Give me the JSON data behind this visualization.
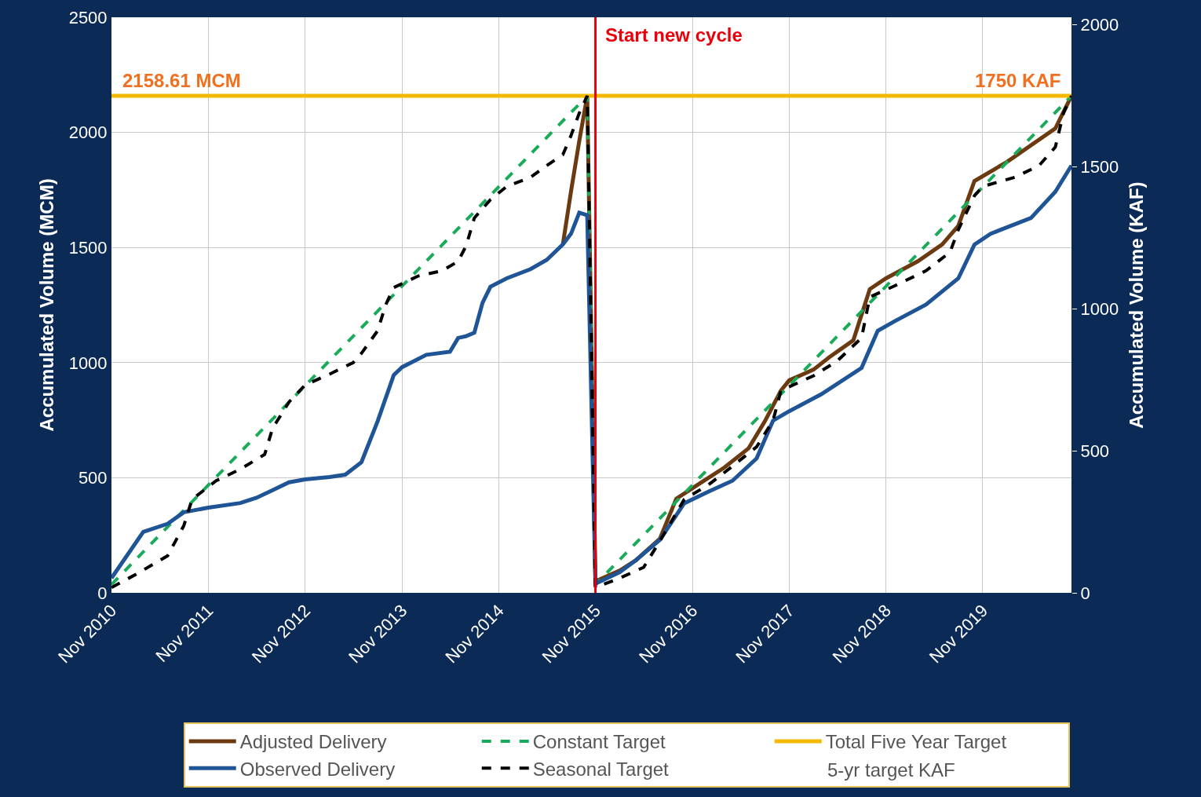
{
  "chart_data": {
    "type": "line",
    "ylabel": "Accumulated Volume (MCM)",
    "y2label": "Accumulated Volume (KAF)",
    "xlim": [
      "2010-11",
      "2020-10"
    ],
    "xticks": [
      {
        "value": "2010-11",
        "label": "Nov 2010"
      },
      {
        "value": "2011-11",
        "label": "Nov 2011"
      },
      {
        "value": "2012-11",
        "label": "Nov 2012"
      },
      {
        "value": "2013-11",
        "label": "Nov 2013"
      },
      {
        "value": "2014-11",
        "label": "Nov 2014"
      },
      {
        "value": "2015-11",
        "label": "Nov 2015"
      },
      {
        "value": "2016-11",
        "label": "Nov 2016"
      },
      {
        "value": "2017-11",
        "label": "Nov 2017"
      },
      {
        "value": "2018-11",
        "label": "Nov 2018"
      },
      {
        "value": "2019-11",
        "label": "Nov 2019"
      }
    ],
    "ylim": [
      0,
      2500
    ],
    "yticks": [
      0,
      500,
      1000,
      1500,
      2000,
      2500
    ],
    "y2lim": [
      0,
      2026.8
    ],
    "y2ticks": [
      0,
      500,
      1000,
      1500,
      2000
    ],
    "grid": true,
    "legend": "bottom",
    "series": [
      {
        "name": "Adjusted Delivery",
        "color": "#6b3a10",
        "line_style": "solid",
        "x": [
          "2015-07",
          "2015-08",
          "2015-09",
          "2015-10",
          "2015-11",
          "2016-02",
          "2016-04",
          "2016-07",
          "2016-09",
          "2016-12",
          "2017-03",
          "2017-06",
          "2017-08",
          "2017-10",
          "2017-11",
          "2018-02",
          "2018-04",
          "2018-07",
          "2018-09",
          "2018-11",
          "2019-03",
          "2019-06",
          "2019-08",
          "2019-10",
          "2020-02",
          "2020-08",
          "2020-10"
        ],
        "values": [
          1513,
          1745,
          1963,
          2158.61,
          50,
          97,
          141,
          235,
          409,
          477,
          544,
          628,
          745,
          879,
          923,
          970,
          1023,
          1097,
          1319,
          1366,
          1440,
          1513,
          1594,
          1789,
          1872,
          2017,
          2158.61
        ]
      },
      {
        "name": "Constant Target",
        "color": "#1aab5a",
        "line_style": "dashed",
        "x": [
          "2010-11",
          "2015-10",
          "2015-11",
          "2020-10"
        ],
        "values": [
          36,
          2158.61,
          36,
          2158.61
        ]
      },
      {
        "name": "Total Five Year Target",
        "color": "#f5b800",
        "line_style": "solid",
        "x": [
          "2010-11",
          "2020-10"
        ],
        "values": [
          2158.61,
          2158.61
        ]
      },
      {
        "name": "Observed Delivery",
        "color": "#1f5596",
        "line_style": "solid",
        "x": [
          "2010-11",
          "2011-03",
          "2011-06",
          "2011-08",
          "2011-11",
          "2012-03",
          "2012-05",
          "2012-07",
          "2012-09",
          "2012-11",
          "2013-02",
          "2013-04",
          "2013-06",
          "2013-08",
          "2013-10",
          "2013-11",
          "2014-02",
          "2014-05",
          "2014-06",
          "2014-07",
          "2014-08",
          "2014-09",
          "2014-10",
          "2014-12",
          "2015-03",
          "2015-05",
          "2015-07",
          "2015-08",
          "2015-09",
          "2015-10",
          "2015-11",
          "2016-02",
          "2016-04",
          "2016-07",
          "2016-10",
          "2017-01",
          "2017-04",
          "2017-07",
          "2017-09",
          "2017-11",
          "2018-03",
          "2018-08",
          "2018-10",
          "2018-12",
          "2019-04",
          "2019-08",
          "2019-10",
          "2019-12",
          "2020-05",
          "2020-08",
          "2020-10"
        ],
        "values": [
          64,
          265,
          300,
          350,
          370,
          390,
          413,
          446,
          480,
          493,
          503,
          513,
          567,
          745,
          946,
          980,
          1034,
          1047,
          1107,
          1115,
          1130,
          1260,
          1330,
          1366,
          1406,
          1446,
          1513,
          1560,
          1651,
          1640,
          40,
          90,
          141,
          230,
          389,
          440,
          487,
          584,
          748,
          789,
          862,
          977,
          1138,
          1178,
          1252,
          1366,
          1513,
          1560,
          1628,
          1742,
          1856
        ]
      },
      {
        "name": "Seasonal Target",
        "color": "#000000",
        "line_style": "dashed",
        "x": [
          "2010-11",
          "2011-02",
          "2011-06",
          "2011-08",
          "2011-09",
          "2011-12",
          "2012-03",
          "2012-06",
          "2012-07",
          "2012-09",
          "2012-11",
          "2013-02",
          "2013-05",
          "2013-06",
          "2013-08",
          "2013-09",
          "2013-10",
          "2014-01",
          "2014-04",
          "2014-06",
          "2014-07",
          "2014-08",
          "2014-10",
          "2014-12",
          "2015-03",
          "2015-05",
          "2015-07",
          "2015-08",
          "2015-09",
          "2015-10",
          "2015-11",
          "2016-02",
          "2016-05",
          "2016-07",
          "2016-10",
          "2017-01",
          "2017-04",
          "2017-07",
          "2017-09",
          "2017-10",
          "2018-02",
          "2018-05",
          "2018-08",
          "2018-09",
          "2018-12",
          "2019-04",
          "2019-07",
          "2019-08",
          "2019-10",
          "2019-11",
          "2020-03",
          "2020-06",
          "2020-08",
          "2020-09",
          "2020-10"
        ],
        "values": [
          23,
          80,
          161,
          292,
          406,
          487,
          537,
          601,
          715,
          829,
          903,
          950,
          1000,
          1040,
          1138,
          1252,
          1326,
          1376,
          1399,
          1440,
          1507,
          1628,
          1708,
          1765,
          1805,
          1856,
          1903,
          1987,
          2084,
          2158.61,
          23,
          64,
          111,
          225,
          406,
          470,
          550,
          634,
          748,
          879,
          943,
          1007,
          1107,
          1285,
          1332,
          1399,
          1480,
          1577,
          1725,
          1765,
          1805,
          1856,
          1936,
          2084,
          2158.61
        ]
      }
    ],
    "ref_lines": [
      {
        "axis": "x",
        "value": "2015-11",
        "label": "Start new cycle",
        "color": "#e8000b"
      }
    ],
    "annotations": [
      {
        "text": "2158.61 MCM",
        "x": "2010-11",
        "y": 2158.61
      },
      {
        "text": "1750 KAF",
        "x": "2020-10",
        "y": 2158.61
      },
      "5-yr target KAF"
    ]
  }
}
